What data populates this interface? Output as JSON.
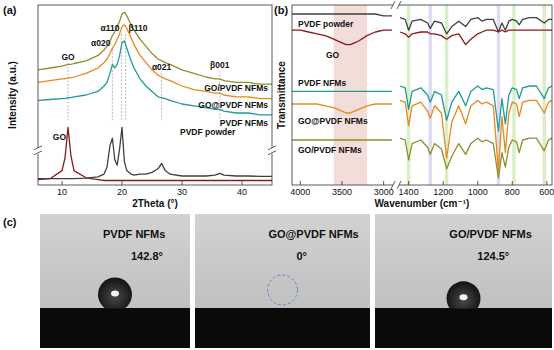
{
  "chart_data": [
    {
      "type": "line",
      "panel": "(a)",
      "x_label": "2Theta (°)",
      "y_label": "Intensity (a.u.)",
      "xlim": [
        6,
        45
      ],
      "xticks": [
        10,
        20,
        30,
        40
      ],
      "ylim": [
        0,
        100
      ],
      "y_break": 19,
      "tick_labels": "x",
      "x": [
        6,
        8,
        10,
        10.5,
        11,
        11.5,
        12,
        14,
        16,
        17,
        17.5,
        18,
        18.4,
        18.8,
        19.2,
        19.6,
        20,
        20.4,
        20.8,
        21.5,
        22,
        23,
        24,
        25,
        26,
        26.6,
        27.2,
        28,
        30,
        32,
        34,
        35.5,
        36.3,
        37,
        39,
        41,
        43,
        45
      ],
      "series": [
        {
          "name": "GO/PVDF NFMs",
          "color": "#8c8f2c",
          "values": [
            64,
            65,
            66,
            66.5,
            67,
            67,
            67.5,
            69,
            72,
            75,
            77,
            80,
            83,
            85,
            88,
            91,
            95,
            96,
            94,
            89,
            86,
            81,
            77,
            73,
            70,
            69,
            68,
            67,
            64,
            62,
            60,
            59,
            59,
            58,
            57,
            57,
            56,
            56
          ]
        },
        {
          "name": "GO@PVDF NFMs",
          "color": "#e8891c",
          "values": [
            57,
            58,
            59,
            59,
            59.5,
            59.5,
            60,
            62,
            65,
            68,
            70,
            73,
            76,
            78,
            81,
            84,
            88,
            89,
            87,
            82,
            78,
            72,
            68,
            64,
            61,
            60,
            59,
            58,
            55,
            53,
            52,
            51,
            51,
            50,
            49,
            49,
            48,
            48
          ]
        },
        {
          "name": "PVDF NFMs",
          "color": "#1f9a96",
          "values": [
            47,
            47.5,
            48,
            48,
            48.5,
            48.5,
            49,
            50,
            52,
            55,
            57,
            62,
            67,
            65,
            67,
            72,
            79,
            80,
            76,
            69,
            65,
            59,
            55,
            52,
            49,
            48.5,
            48,
            47,
            45,
            44,
            43,
            42,
            42,
            41,
            40,
            40,
            39,
            39
          ]
        },
        {
          "name": "GO",
          "color": "#8b1a1a",
          "values": [
            3,
            3.5,
            8,
            15,
            32,
            16,
            8,
            4,
            3,
            2.5,
            2.5,
            2.5,
            2.5,
            2.5,
            2.5,
            2.5,
            2.5,
            2.5,
            2.5,
            2.5,
            2.5,
            2.5,
            2.5,
            2.5,
            2.5,
            2.5,
            2.5,
            2.5,
            2.5,
            2.5,
            2.5,
            2.5,
            2.5,
            2.5,
            2.5,
            2.5,
            2.5,
            2.5
          ]
        },
        {
          "name": "PVDF powder",
          "color": "#404040",
          "values": [
            3.5,
            3.5,
            3.5,
            3.5,
            3.5,
            3.5,
            3.5,
            3.8,
            4.5,
            6,
            10,
            22,
            26,
            14,
            11,
            20,
            32,
            13,
            8,
            6,
            5.5,
            6,
            6,
            7,
            9,
            12,
            8,
            6,
            5,
            5,
            5,
            5.5,
            6.5,
            5.5,
            5,
            5,
            4.8,
            4.8
          ]
        }
      ],
      "annotations": [
        {
          "label": "GO",
          "x": 11
        },
        {
          "label": "α020",
          "x": 18.4
        },
        {
          "label": "α110",
          "x": 19.9
        },
        {
          "label": "β110",
          "x": 20.6
        },
        {
          "label": "α021",
          "x": 26.6
        },
        {
          "label": "β001",
          "x": 36.3
        }
      ]
    },
    {
      "type": "line",
      "panel": "(b)",
      "x_label": "Wavenumber (cm⁻¹)",
      "y_label": "Transmittance",
      "xlim": [
        4100,
        570
      ],
      "x_break": [
        2900,
        1450
      ],
      "xticks": [
        4000,
        3500,
        3000,
        1400,
        1200,
        1000,
        800,
        600
      ],
      "ylim": [
        0,
        100
      ],
      "tick_labels": "x",
      "x": [
        4100,
        4000,
        3900,
        3800,
        3700,
        3600,
        3500,
        3450,
        3400,
        3350,
        3300,
        3200,
        3100,
        3000,
        2900,
        2000,
        1450,
        1420,
        1400,
        1380,
        1330,
        1290,
        1275,
        1250,
        1210,
        1180,
        1150,
        1110,
        1070,
        1040,
        1000,
        975,
        950,
        910,
        880,
        860,
        840,
        820,
        800,
        775,
        760,
        740,
        700,
        660,
        615,
        590,
        570
      ],
      "series": [
        {
          "name": "PVDF powder",
          "color": "#404040",
          "values": [
            95,
            95,
            95,
            95,
            95,
            95,
            95,
            95,
            95,
            95,
            95,
            95,
            95,
            94,
            94,
            null,
            93,
            92,
            86,
            91,
            92,
            90,
            87,
            91,
            90,
            84,
            88,
            91,
            88,
            92,
            93,
            91,
            92,
            92,
            85,
            90,
            86,
            91,
            92,
            91,
            89,
            92,
            93,
            93,
            90,
            92,
            92
          ]
        },
        {
          "name": "GO",
          "color": "#8b1a1a",
          "values": [
            86,
            86,
            85,
            84,
            83,
            81,
            79,
            78,
            78,
            79,
            80,
            83,
            85,
            86,
            86,
            null,
            85,
            84,
            82,
            84,
            85,
            85,
            84,
            84,
            83,
            81,
            83,
            84,
            78,
            81,
            84,
            85,
            86,
            86,
            85,
            86,
            85,
            86,
            86,
            86,
            86,
            86,
            86,
            86,
            86,
            86,
            86
          ]
        },
        {
          "name": "PVDF NFMs",
          "color": "#1f9a96",
          "values": [
            52,
            52,
            52,
            52,
            52,
            52,
            52,
            52,
            52,
            52,
            52,
            52,
            52,
            52,
            52,
            null,
            55,
            54,
            42,
            52,
            54,
            50,
            46,
            52,
            50,
            36,
            46,
            52,
            44,
            52,
            55,
            53,
            54,
            53,
            30,
            48,
            34,
            50,
            54,
            53,
            48,
            54,
            55,
            55,
            48,
            54,
            55
          ]
        },
        {
          "name": "GO@PVDF NFMs",
          "color": "#e8891c",
          "values": [
            45,
            45,
            45,
            45,
            44,
            43,
            41,
            40,
            40,
            41,
            42,
            44,
            45,
            45,
            45,
            null,
            47,
            46,
            33,
            44,
            46,
            41,
            37,
            44,
            40,
            15,
            35,
            44,
            34,
            44,
            47,
            45,
            46,
            44,
            8,
            38,
            18,
            40,
            46,
            45,
            38,
            46,
            47,
            47,
            40,
            46,
            47
          ]
        },
        {
          "name": "GO/PVDF NFMs",
          "color": "#8c8f2c",
          "values": [
            25,
            25,
            25,
            25,
            25,
            25,
            25,
            25,
            25,
            25,
            25,
            25,
            25,
            25,
            25,
            null,
            26,
            25,
            14,
            23,
            25,
            21,
            17,
            23,
            20,
            9,
            16,
            23,
            17,
            23,
            26,
            24,
            25,
            23,
            4,
            18,
            10,
            21,
            25,
            24,
            18,
            25,
            26,
            26,
            19,
            25,
            26
          ]
        }
      ],
      "bands": [
        {
          "range": [
            3600,
            3200
          ],
          "color": "#f3ddd8"
        },
        {
          "range": [
            1410,
            1390
          ],
          "color": "#d8efc8"
        },
        {
          "range": [
            1285,
            1265
          ],
          "color": "#dcdcf4"
        },
        {
          "range": [
            1190,
            1170
          ],
          "color": "#d8efc8"
        },
        {
          "range": [
            890,
            870
          ],
          "color": "#dcdcf4"
        },
        {
          "range": [
            800,
            780
          ],
          "color": "#d8efc8"
        },
        {
          "range": [
            625,
            605
          ],
          "color": "#d8efc8"
        }
      ]
    },
    {
      "type": "image",
      "panel": "(c)",
      "categories": [
        "PVDF NFMs",
        "GO@PVDF NFMs",
        "GO/PVDF NFMs"
      ],
      "contact_angles": [
        142.8,
        0,
        124.5
      ],
      "value_labels": [
        "142.8°",
        "0°",
        "124.5°"
      ]
    }
  ]
}
